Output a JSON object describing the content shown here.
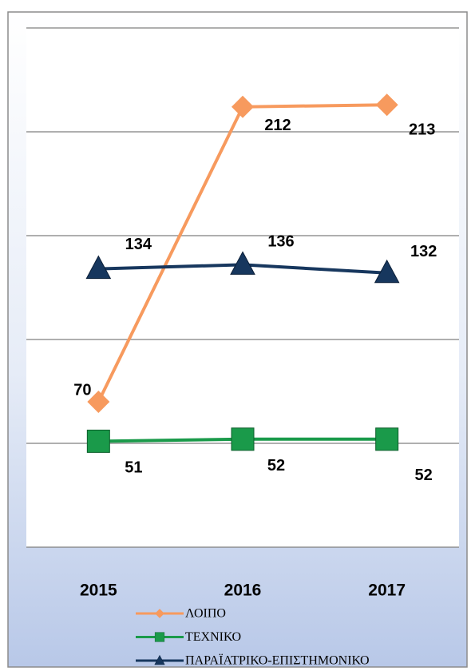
{
  "chart_data": {
    "type": "line",
    "categories": [
      "2015",
      "2016",
      "2017"
    ],
    "series": [
      {
        "name": "ΛΟΙΠΟ",
        "color": "#f79a5e",
        "marker": "diamond",
        "values": [
          70,
          212,
          213
        ]
      },
      {
        "name": "ΤΕΧΝΙΚΟ",
        "color": "#1a9a4a",
        "marker": "square",
        "values": [
          51,
          52,
          52
        ]
      },
      {
        "name": "ΠΑΡΑΪΑΤΡΙΚΟ-ΕΠΙΣΤΗΜΟΝΙΚΟ",
        "color": "#17375e",
        "marker": "triangle",
        "values": [
          134,
          136,
          132
        ]
      }
    ],
    "ylim": [
      0,
      250
    ],
    "yticks": [
      0,
      50,
      100,
      150,
      200,
      250
    ],
    "grid": true
  }
}
